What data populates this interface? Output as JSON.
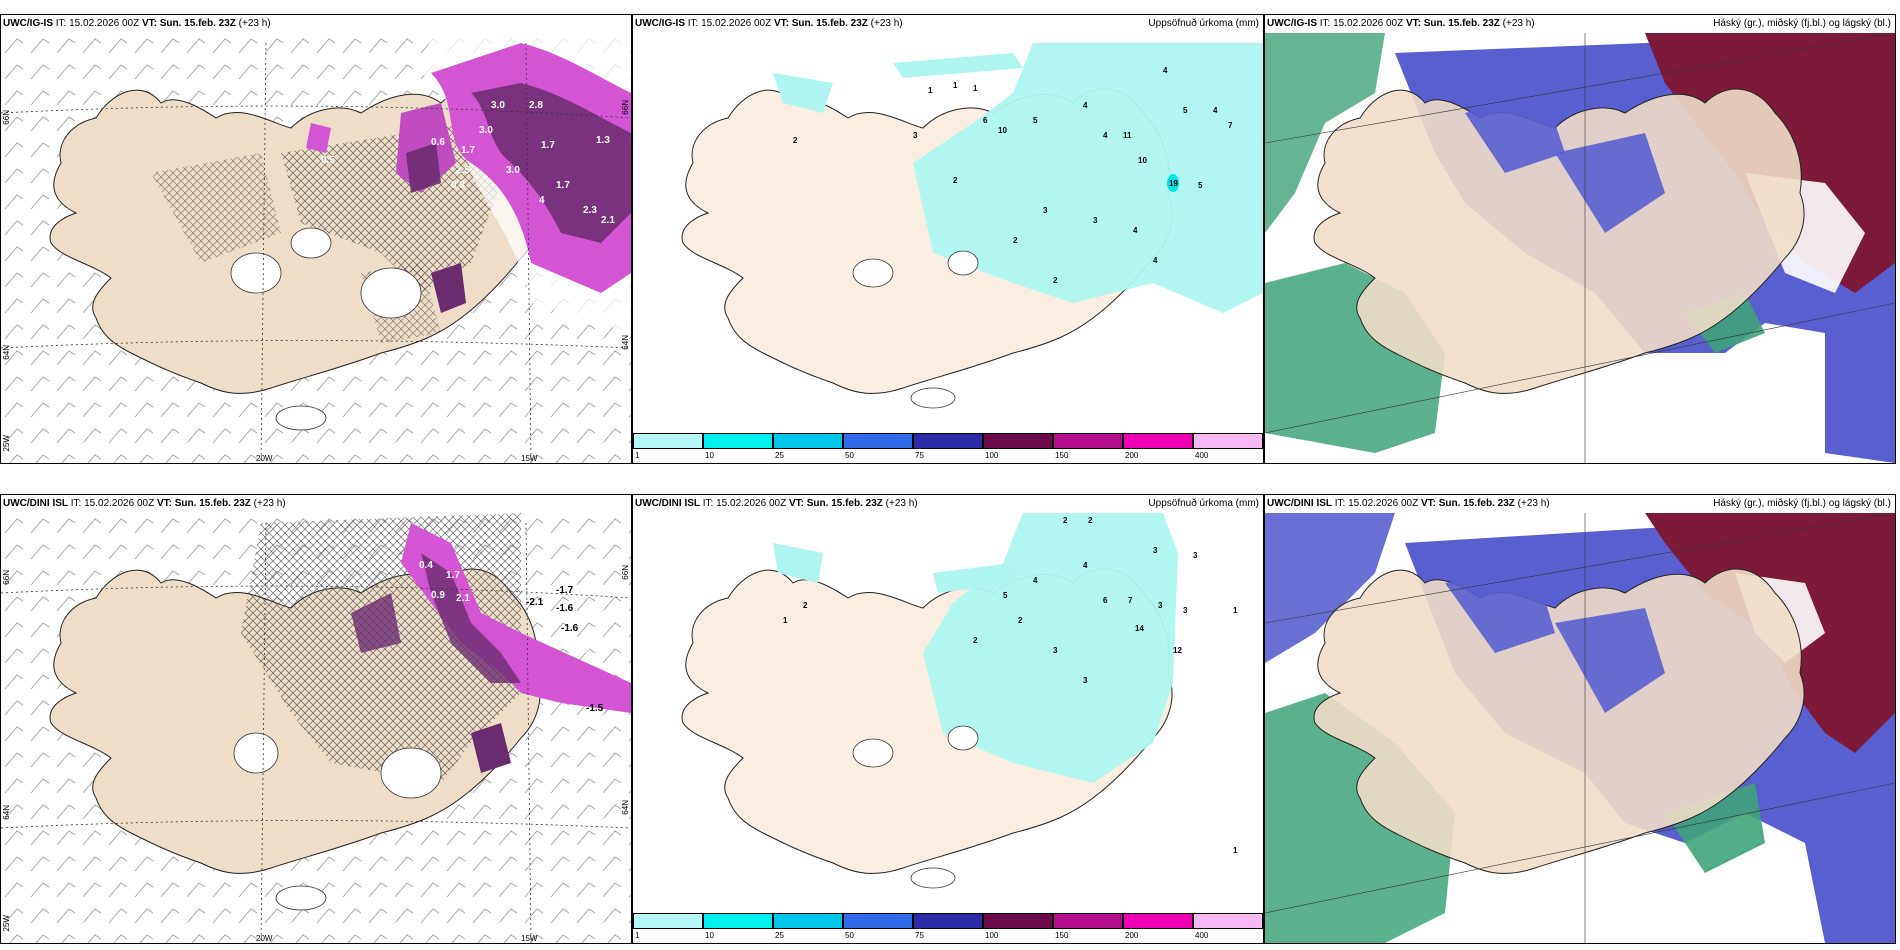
{
  "colors": {
    "land": "#eeddc8",
    "land_light": "#faeee2",
    "precip_light": "#aef5f0",
    "cyan": "#00e5e5",
    "magenta": "#d455d4",
    "dark_purple": "#6a2c6f",
    "blue_cloud": "#5a5fcf",
    "dark_red_cloud": "#7d1a3a",
    "green_cloud": "#3ea37a"
  },
  "panels": [
    {
      "id": "top-left",
      "model": "UWC/IG-IS",
      "it_label": "IT:",
      "it": "15.02.2026 00Z",
      "vt_label": "VT:",
      "vt": "Sun. 15.feb. 23Z",
      "lead": "(+23 h)",
      "title_right": "",
      "axes": {
        "lon1": "20W",
        "lon2": "15W",
        "lat1": "66N",
        "lat2": "64N",
        "lon_left": "25W",
        "lat_right1": "66N",
        "lat_right2": "64N"
      },
      "values": [
        "3.0",
        "2.8",
        "1.7",
        "0.6",
        "1.7",
        "3.0",
        "2.5",
        "0.3",
        "3.0",
        "1.7",
        "4",
        "2.3",
        "2.1",
        "1.3",
        "0.5"
      ]
    },
    {
      "id": "top-middle",
      "model": "UWC/IG-IS",
      "it_label": "IT:",
      "it": "15.02.2026 00Z",
      "vt_label": "VT:",
      "vt": "Sun. 15.feb. 23Z",
      "lead": "(+23 h)",
      "title_right": "Uppsöfnuð úrkoma (mm)",
      "values": [
        "1",
        "1",
        "1",
        "2",
        "3",
        "6",
        "10",
        "5",
        "4",
        "4",
        "11",
        "10",
        "19",
        "2",
        "3",
        "3",
        "2",
        "4",
        "4",
        "5",
        "5",
        "4",
        "7",
        "2",
        "4"
      ]
    },
    {
      "id": "top-right",
      "model": "UWC/IG-IS",
      "it_label": "IT:",
      "it": "15.02.2026 00Z",
      "vt_label": "VT:",
      "vt": "Sun. 15.feb. 23Z",
      "lead": "(+23 h)",
      "title_right": "Háský (gr.), miðský (fj.bl.) og lágský (bl.)"
    },
    {
      "id": "bottom-left",
      "model": "UWC/DINI ISL",
      "it_label": "IT:",
      "it": "15.02.2026 00Z",
      "vt_label": "VT:",
      "vt": "Sun. 15.feb. 23Z",
      "lead": "(+23 h)",
      "title_right": "",
      "axes": {
        "lon1": "20W",
        "lon2": "15W",
        "lat1": "66N",
        "lat2": "64N",
        "lon_left": "25W",
        "lat_right1": "66N",
        "lat_right2": "64N"
      },
      "values": [
        "-1.7",
        "-2.1",
        "-1.6",
        "-1.6",
        "-1.5",
        "1.7",
        "2.1",
        "0.9",
        "1.6",
        "0.4"
      ]
    },
    {
      "id": "bottom-middle",
      "model": "UWC/DINI ISL",
      "it_label": "IT:",
      "it": "15.02.2026 00Z",
      "vt_label": "VT:",
      "vt": "Sun. 15.feb. 23Z",
      "lead": "(+23 h)",
      "title_right": "Uppsöfnuð úrkoma (mm)",
      "values": [
        "2",
        "2",
        "3",
        "3",
        "4",
        "6",
        "7",
        "3",
        "3",
        "14",
        "12",
        "3",
        "1",
        "2",
        "4",
        "5",
        "2",
        "3",
        "2",
        "1",
        "1"
      ]
    },
    {
      "id": "bottom-right",
      "model": "UWC/DINI ISL",
      "it_label": "IT:",
      "it": "15.02.2026 00Z",
      "vt_label": "VT:",
      "vt": "Sun. 15.feb. 23Z",
      "lead": "(+23 h)",
      "title_right": "Háský (gr.), miðský (fj.bl.) og lágský (bl.)"
    }
  ],
  "colorbar": {
    "labels": [
      "1",
      "10",
      "25",
      "50",
      "75",
      "100",
      "150",
      "200",
      "400"
    ],
    "colors": [
      "#b4f7f5",
      "#00f0f0",
      "#00c6ea",
      "#2f6be8",
      "#2c2ca8",
      "#6d0c4a",
      "#b40f8c",
      "#f000b4",
      "#f7b8f3"
    ]
  }
}
